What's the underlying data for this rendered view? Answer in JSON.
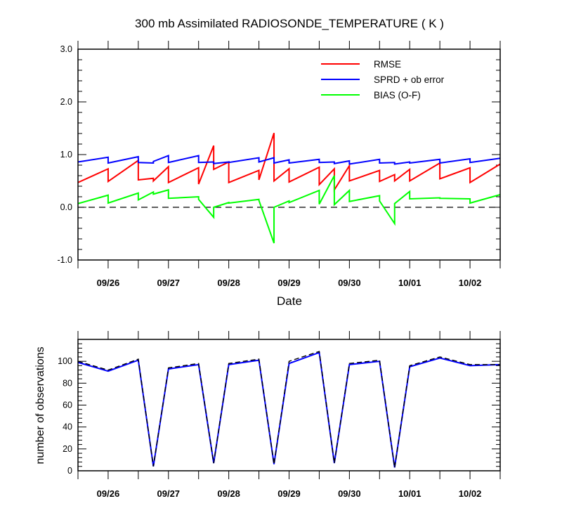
{
  "chart_data": [
    {
      "type": "line",
      "title": "300 mb Assimilated RADIOSONDE_TEMPERATURE ( K )",
      "xlabel": "Date",
      "ylabel": "",
      "ylim": [
        -1.0,
        3.0
      ],
      "yticks": [
        "-1.0",
        "0.0",
        "1.0",
        "2.0",
        "3.0"
      ],
      "yticks_values": [
        -1,
        0,
        1,
        2,
        3
      ],
      "xlim": [
        0,
        14
      ],
      "x_tick_labels": [
        "09/26",
        "09/27",
        "09/28",
        "09/29",
        "09/30",
        "10/01",
        "10/02"
      ],
      "x_tick_positions": [
        1,
        3,
        5,
        7,
        9,
        11,
        13
      ],
      "zero_line": {
        "style": "dashed",
        "value": 0
      },
      "legend": {
        "placement": "top-right"
      },
      "series": [
        {
          "name": "RMSE",
          "color": "#ff0000",
          "points": [
            [
              0,
              0.47
            ],
            [
              1,
              0.73
            ],
            [
              1,
              0.49
            ],
            [
              2,
              0.89
            ],
            [
              2,
              0.52
            ],
            [
              2.5,
              0.55
            ],
            [
              2.5,
              0.5
            ],
            [
              3,
              0.77
            ],
            [
              3,
              0.47
            ],
            [
              4,
              0.75
            ],
            [
              4,
              0.44
            ],
            [
              4.5,
              1.17
            ],
            [
              4.5,
              0.72
            ],
            [
              5,
              0.86
            ],
            [
              5,
              0.47
            ],
            [
              6,
              0.7
            ],
            [
              6,
              0.52
            ],
            [
              6.5,
              1.41
            ],
            [
              6.5,
              0.5
            ],
            [
              7,
              0.73
            ],
            [
              7,
              0.48
            ],
            [
              8,
              0.76
            ],
            [
              8,
              0.43
            ],
            [
              8.5,
              0.73
            ],
            [
              8.5,
              0.33
            ],
            [
              9,
              0.79
            ],
            [
              9,
              0.5
            ],
            [
              10,
              0.7
            ],
            [
              10,
              0.49
            ],
            [
              10.5,
              0.62
            ],
            [
              10.5,
              0.5
            ],
            [
              11,
              0.72
            ],
            [
              11,
              0.5
            ],
            [
              12,
              0.84
            ],
            [
              12,
              0.54
            ],
            [
              13,
              0.75
            ],
            [
              13,
              0.47
            ],
            [
              14,
              0.82
            ]
          ]
        },
        {
          "name": "SPRD + ob error",
          "color": "#0000ff",
          "points": [
            [
              0,
              0.86
            ],
            [
              1,
              0.95
            ],
            [
              1,
              0.84
            ],
            [
              2,
              0.96
            ],
            [
              2,
              0.85
            ],
            [
              2.5,
              0.84
            ],
            [
              2.5,
              0.87
            ],
            [
              3,
              0.98
            ],
            [
              3,
              0.85
            ],
            [
              4,
              0.98
            ],
            [
              4,
              0.85
            ],
            [
              4.5,
              0.86
            ],
            [
              4.5,
              0.83
            ],
            [
              5,
              0.86
            ],
            [
              5,
              0.85
            ],
            [
              6,
              0.94
            ],
            [
              6,
              0.86
            ],
            [
              6.5,
              0.94
            ],
            [
              6.5,
              0.84
            ],
            [
              7,
              0.9
            ],
            [
              7,
              0.84
            ],
            [
              8,
              0.91
            ],
            [
              8,
              0.85
            ],
            [
              8.5,
              0.86
            ],
            [
              8.5,
              0.83
            ],
            [
              9,
              0.88
            ],
            [
              9,
              0.82
            ],
            [
              10,
              0.91
            ],
            [
              10,
              0.84
            ],
            [
              10.5,
              0.85
            ],
            [
              10.5,
              0.82
            ],
            [
              11,
              0.86
            ],
            [
              11,
              0.84
            ],
            [
              12,
              0.91
            ],
            [
              12,
              0.84
            ],
            [
              13,
              0.92
            ],
            [
              13,
              0.85
            ],
            [
              14,
              0.93
            ]
          ]
        },
        {
          "name": "BIAS (O-F)",
          "color": "#00ff00",
          "points": [
            [
              0,
              0.07
            ],
            [
              1,
              0.23
            ],
            [
              1,
              0.08
            ],
            [
              2,
              0.27
            ],
            [
              2,
              0.14
            ],
            [
              2.5,
              0.29
            ],
            [
              2.5,
              0.25
            ],
            [
              3,
              0.33
            ],
            [
              3,
              0.17
            ],
            [
              4,
              0.2
            ],
            [
              4,
              0.15
            ],
            [
              4.5,
              -0.19
            ],
            [
              4.5,
              0.0
            ],
            [
              5,
              0.09
            ],
            [
              5,
              0.08
            ],
            [
              6,
              0.15
            ],
            [
              6,
              0.13
            ],
            [
              6.5,
              -0.68
            ],
            [
              6.5,
              0.0
            ],
            [
              7,
              0.12
            ],
            [
              7,
              0.09
            ],
            [
              8,
              0.32
            ],
            [
              8,
              0.06
            ],
            [
              8.5,
              0.6
            ],
            [
              8.5,
              0.05
            ],
            [
              9,
              0.32
            ],
            [
              9,
              0.11
            ],
            [
              10,
              0.22
            ],
            [
              10,
              0.12
            ],
            [
              10.5,
              -0.31
            ],
            [
              10.5,
              0.07
            ],
            [
              11,
              0.3
            ],
            [
              11,
              0.16
            ],
            [
              12,
              0.18
            ],
            [
              12,
              0.17
            ],
            [
              13,
              0.16
            ],
            [
              13,
              0.08
            ],
            [
              14,
              0.24
            ]
          ]
        }
      ]
    },
    {
      "type": "line",
      "title": "",
      "xlabel": "",
      "ylabel": "number of observations",
      "ylim": [
        0,
        120
      ],
      "yticks": [
        "0",
        "20",
        "40",
        "60",
        "80",
        "100"
      ],
      "yticks_values": [
        0,
        20,
        40,
        60,
        80,
        100
      ],
      "xlim": [
        0,
        14
      ],
      "x_tick_labels": [
        "09/26",
        "09/27",
        "09/28",
        "09/29",
        "09/30",
        "10/01",
        "10/02"
      ],
      "x_tick_positions": [
        1,
        3,
        5,
        7,
        9,
        11,
        13
      ],
      "series": [
        {
          "name": "observations (solid)",
          "color": "#0000ff",
          "style": "solid",
          "points": [
            [
              0,
              99
            ],
            [
              1,
              91
            ],
            [
              2,
              101
            ],
            [
              2.5,
              4
            ],
            [
              3,
              93
            ],
            [
              4,
              97
            ],
            [
              4.5,
              7
            ],
            [
              5,
              97
            ],
            [
              6,
              101
            ],
            [
              6.5,
              6
            ],
            [
              7,
              98
            ],
            [
              8,
              108
            ],
            [
              8.5,
              7
            ],
            [
              9,
              97
            ],
            [
              10,
              100
            ],
            [
              10.5,
              3
            ],
            [
              11,
              95
            ],
            [
              12,
              103
            ],
            [
              13,
              96
            ],
            [
              14,
              97
            ]
          ]
        },
        {
          "name": "observations (dashed)",
          "color": "#000000",
          "style": "dashed",
          "points": [
            [
              0,
              100
            ],
            [
              1,
              92
            ],
            [
              2,
              102
            ],
            [
              2.5,
              4
            ],
            [
              3,
              94
            ],
            [
              4,
              98
            ],
            [
              4.5,
              7
            ],
            [
              5,
              98
            ],
            [
              6,
              102
            ],
            [
              6.5,
              6
            ],
            [
              7,
              100
            ],
            [
              8,
              109
            ],
            [
              8.5,
              7
            ],
            [
              9,
              98
            ],
            [
              10,
              101
            ],
            [
              10.5,
              3
            ],
            [
              11,
              96
            ],
            [
              12,
              104
            ],
            [
              13,
              97
            ],
            [
              14,
              97
            ]
          ]
        }
      ]
    }
  ]
}
